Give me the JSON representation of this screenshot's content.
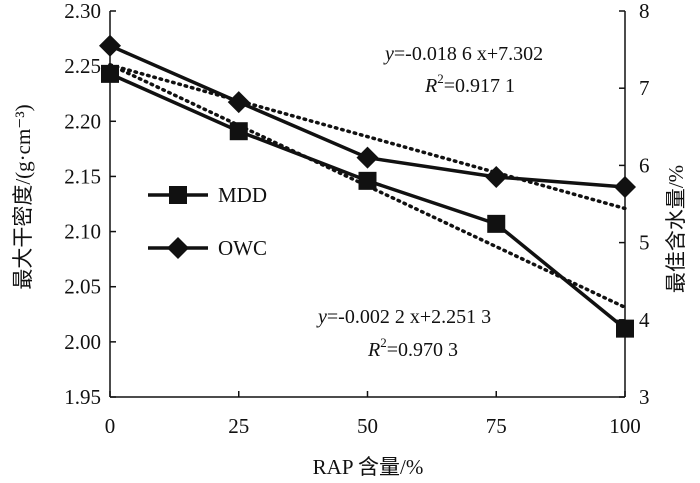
{
  "chart_data": {
    "type": "line",
    "x": [
      0,
      25,
      50,
      75,
      100
    ],
    "xlabel": "RAP 含量/%",
    "ylabel_left": "最大干密度/(g·cm⁻³)",
    "ylabel_right": "最佳含水量/%",
    "xlim": [
      0,
      100
    ],
    "ylim_left": [
      1.95,
      2.3
    ],
    "ylim_right": [
      3,
      8
    ],
    "xticks": [
      "0",
      "25",
      "50",
      "75",
      "100"
    ],
    "yticks_left": [
      "1.95",
      "2.00",
      "2.05",
      "2.10",
      "2.15",
      "2.20",
      "2.25",
      "2.30"
    ],
    "yticks_right": [
      "3",
      "4",
      "5",
      "6",
      "7",
      "8"
    ],
    "series": [
      {
        "name": "MDD",
        "axis": "left",
        "marker": "square",
        "values": [
          2.243,
          2.191,
          2.146,
          2.107,
          2.012
        ],
        "trend": {
          "slope": -0.0022,
          "intercept": 2.2513
        },
        "equation": {
          "lhs": "y",
          "rhs": "=-0.002 2 x+2.251 3",
          "r2_label": "R",
          "r2_sup": "2",
          "r2_value": "=0.970 3"
        }
      },
      {
        "name": "OWC",
        "axis": "right",
        "marker": "diamond",
        "values": [
          7.55,
          6.82,
          6.1,
          5.85,
          5.72
        ],
        "trend": {
          "slope": -0.0186,
          "intercept": 7.302
        },
        "equation": {
          "lhs": "y",
          "rhs": "=-0.018 6 x+7.302",
          "r2_label": "R",
          "r2_sup": "2",
          "r2_value": "=0.917 1"
        }
      }
    ],
    "legend": {
      "placement": "center-left"
    }
  }
}
